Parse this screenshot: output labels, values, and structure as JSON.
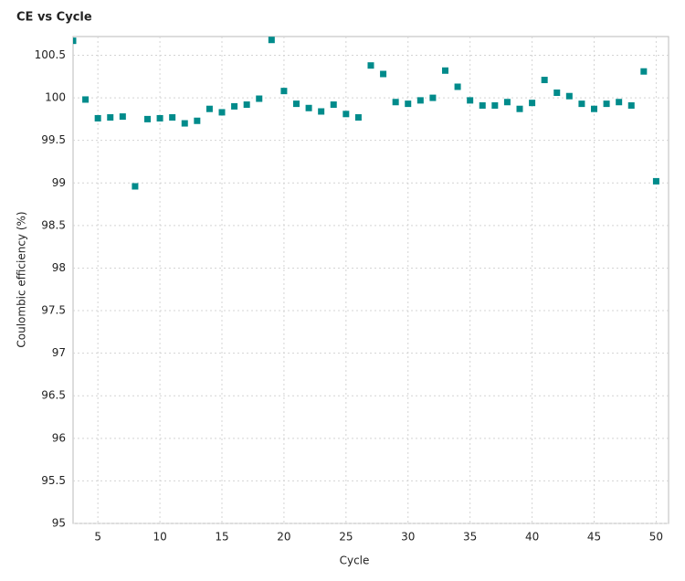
{
  "chart_data": {
    "type": "scatter",
    "title": "CE vs Cycle",
    "x_label": "Cycle",
    "y_label": "Coulombic efficiency (%)",
    "x": [
      3,
      4,
      5,
      6,
      7,
      8,
      9,
      10,
      11,
      12,
      13,
      14,
      15,
      16,
      17,
      18,
      19,
      20,
      21,
      22,
      23,
      24,
      25,
      26,
      27,
      28,
      29,
      30,
      31,
      32,
      33,
      34,
      35,
      36,
      37,
      38,
      39,
      40,
      41,
      42,
      43,
      44,
      45,
      46,
      47,
      48,
      49,
      50
    ],
    "values": [
      100.67,
      99.98,
      99.76,
      99.77,
      99.78,
      98.96,
      99.75,
      99.76,
      99.77,
      99.7,
      99.73,
      99.87,
      99.83,
      99.9,
      99.92,
      99.99,
      100.68,
      100.08,
      99.93,
      99.88,
      99.84,
      99.92,
      99.81,
      99.77,
      100.38,
      100.28,
      99.95,
      99.93,
      99.97,
      100.0,
      100.32,
      100.13,
      99.97,
      99.91,
      99.91,
      99.95,
      99.87,
      99.94,
      100.21,
      100.06,
      100.02,
      99.93,
      99.87,
      99.93,
      99.95,
      99.91,
      100.31,
      99.02
    ],
    "color": "#008b8b",
    "xlim": [
      3,
      51
    ],
    "ylim": [
      95,
      100.72
    ],
    "xticks": [
      5,
      10,
      15,
      20,
      25,
      30,
      35,
      40,
      45,
      50
    ],
    "yticks": [
      95,
      95.5,
      96,
      96.5,
      97,
      97.5,
      98,
      98.5,
      99,
      99.5,
      100,
      100.5
    ],
    "grid": true
  }
}
